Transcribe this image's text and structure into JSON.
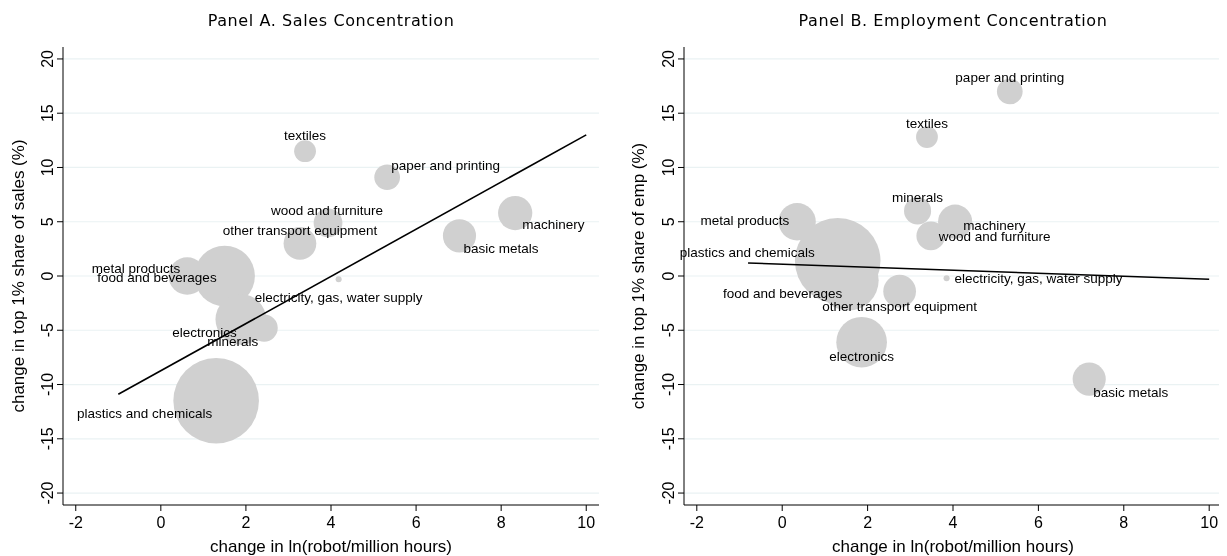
{
  "chart_data": [
    {
      "type": "bubble",
      "title": "Panel A. Sales Concentration",
      "xlabel": "change in ln(robot/million hours)",
      "ylabel": "change in top 1% share of sales (%)",
      "xlim": [
        -2.3,
        10.3
      ],
      "ylim": [
        -21.1,
        21.1
      ],
      "xticks": [
        -2,
        0,
        2,
        4,
        6,
        8,
        10
      ],
      "yticks": [
        -20,
        -15,
        -10,
        -5,
        0,
        5,
        10,
        15,
        20
      ],
      "grid": "y",
      "series": [
        {
          "type": "bubble",
          "color": "#d0d0d0",
          "x": [
            3.39,
            5.32,
            3.93,
            3.27,
            7.02,
            8.33,
            0.62,
            1.5,
            4.18,
            1.88,
            2.43,
            1.3
          ],
          "values": [
            11.5,
            9.1,
            4.9,
            3.0,
            3.7,
            5.8,
            0.0,
            0.0,
            -0.3,
            -4.0,
            -4.8,
            -11.5
          ],
          "sizes": [
            0.065,
            0.09,
            0.113,
            0.146,
            0.15,
            0.16,
            0.19,
            0.5,
            0.005,
            0.35,
            0.1,
            1
          ]
        },
        {
          "type": "line",
          "color": "#000000",
          "x": [
            -1,
            10
          ],
          "values": [
            -10.9,
            13.0
          ]
        }
      ],
      "annotations": [
        {
          "text": "textiles",
          "x": 3.39,
          "y": 11.5
        },
        {
          "text": "paper and printing",
          "x": 5.32,
          "y": 9.1
        },
        {
          "text": "wood and furniture",
          "x": 3.93,
          "y": 4.9
        },
        {
          "text": "other transport equipment",
          "x": 3.27,
          "y": 3.0
        },
        {
          "text": "basic metals",
          "x": 7.02,
          "y": 3.7
        },
        {
          "text": "machinery",
          "x": 8.33,
          "y": 5.8
        },
        {
          "text": "metal products",
          "x": 0.62,
          "y": 0.0
        },
        {
          "text": "food and beverages",
          "x": 1.5,
          "y": 0.0
        },
        {
          "text": "electricity, gas, water supply",
          "x": 4.18,
          "y": -0.3
        },
        {
          "text": "electronics",
          "x": 1.88,
          "y": -4.0
        },
        {
          "text": "minerals",
          "x": 2.43,
          "y": -4.8
        },
        {
          "text": "plastics and chemicals",
          "x": 1.3,
          "y": -11.5
        }
      ]
    },
    {
      "type": "bubble",
      "title": "Panel B. Employment Concentration",
      "xlabel": "change in ln(robot/million hours)",
      "ylabel": "change in top 1% share of emp (%)",
      "xlim": [
        -2.3,
        10.3
      ],
      "ylim": [
        -21.1,
        21.1
      ],
      "xticks": [
        -2,
        0,
        2,
        4,
        6,
        8,
        10
      ],
      "yticks": [
        -20,
        -15,
        -10,
        -5,
        0,
        5,
        10,
        15,
        20
      ],
      "grid": "y",
      "series": [
        {
          "type": "bubble",
          "color": "#d0d0d0",
          "x": [
            3.39,
            5.33,
            3.48,
            2.75,
            7.19,
            4.05,
            0.35,
            1.55,
            3.85,
            1.86,
            3.17,
            1.3
          ],
          "values": [
            12.8,
            17.0,
            3.7,
            -1.4,
            -9.5,
            5.0,
            5.0,
            -0.4,
            -0.2,
            -6.1,
            6.0,
            1.4
          ],
          "sizes": [
            0.065,
            0.09,
            0.113,
            0.146,
            0.15,
            0.16,
            0.19,
            0.5,
            0.005,
            0.35,
            0.1,
            1
          ]
        },
        {
          "type": "line",
          "color": "#000000",
          "x": [
            -0.8,
            10
          ],
          "values": [
            1.2,
            -0.3
          ]
        }
      ],
      "annotations": [
        {
          "text": "textiles",
          "x": 3.39,
          "y": 12.8
        },
        {
          "text": "paper and printing",
          "x": 5.33,
          "y": 17.0
        },
        {
          "text": "wood and furniture",
          "x": 3.48,
          "y": 3.7
        },
        {
          "text": "other transport equipment",
          "x": 2.75,
          "y": -1.4
        },
        {
          "text": "basic metals",
          "x": 7.19,
          "y": -9.5
        },
        {
          "text": "machinery",
          "x": 4.05,
          "y": 5.0
        },
        {
          "text": "metal products",
          "x": 0.35,
          "y": 5.0
        },
        {
          "text": "food and beverages",
          "x": 1.55,
          "y": -0.4
        },
        {
          "text": "electricity, gas, water supply",
          "x": 3.85,
          "y": -0.2
        },
        {
          "text": "electronics",
          "x": 1.86,
          "y": -6.1
        },
        {
          "text": "minerals",
          "x": 3.17,
          "y": 6.0
        },
        {
          "text": "plastics and chemicals",
          "x": 1.3,
          "y": 1.4
        }
      ]
    }
  ]
}
